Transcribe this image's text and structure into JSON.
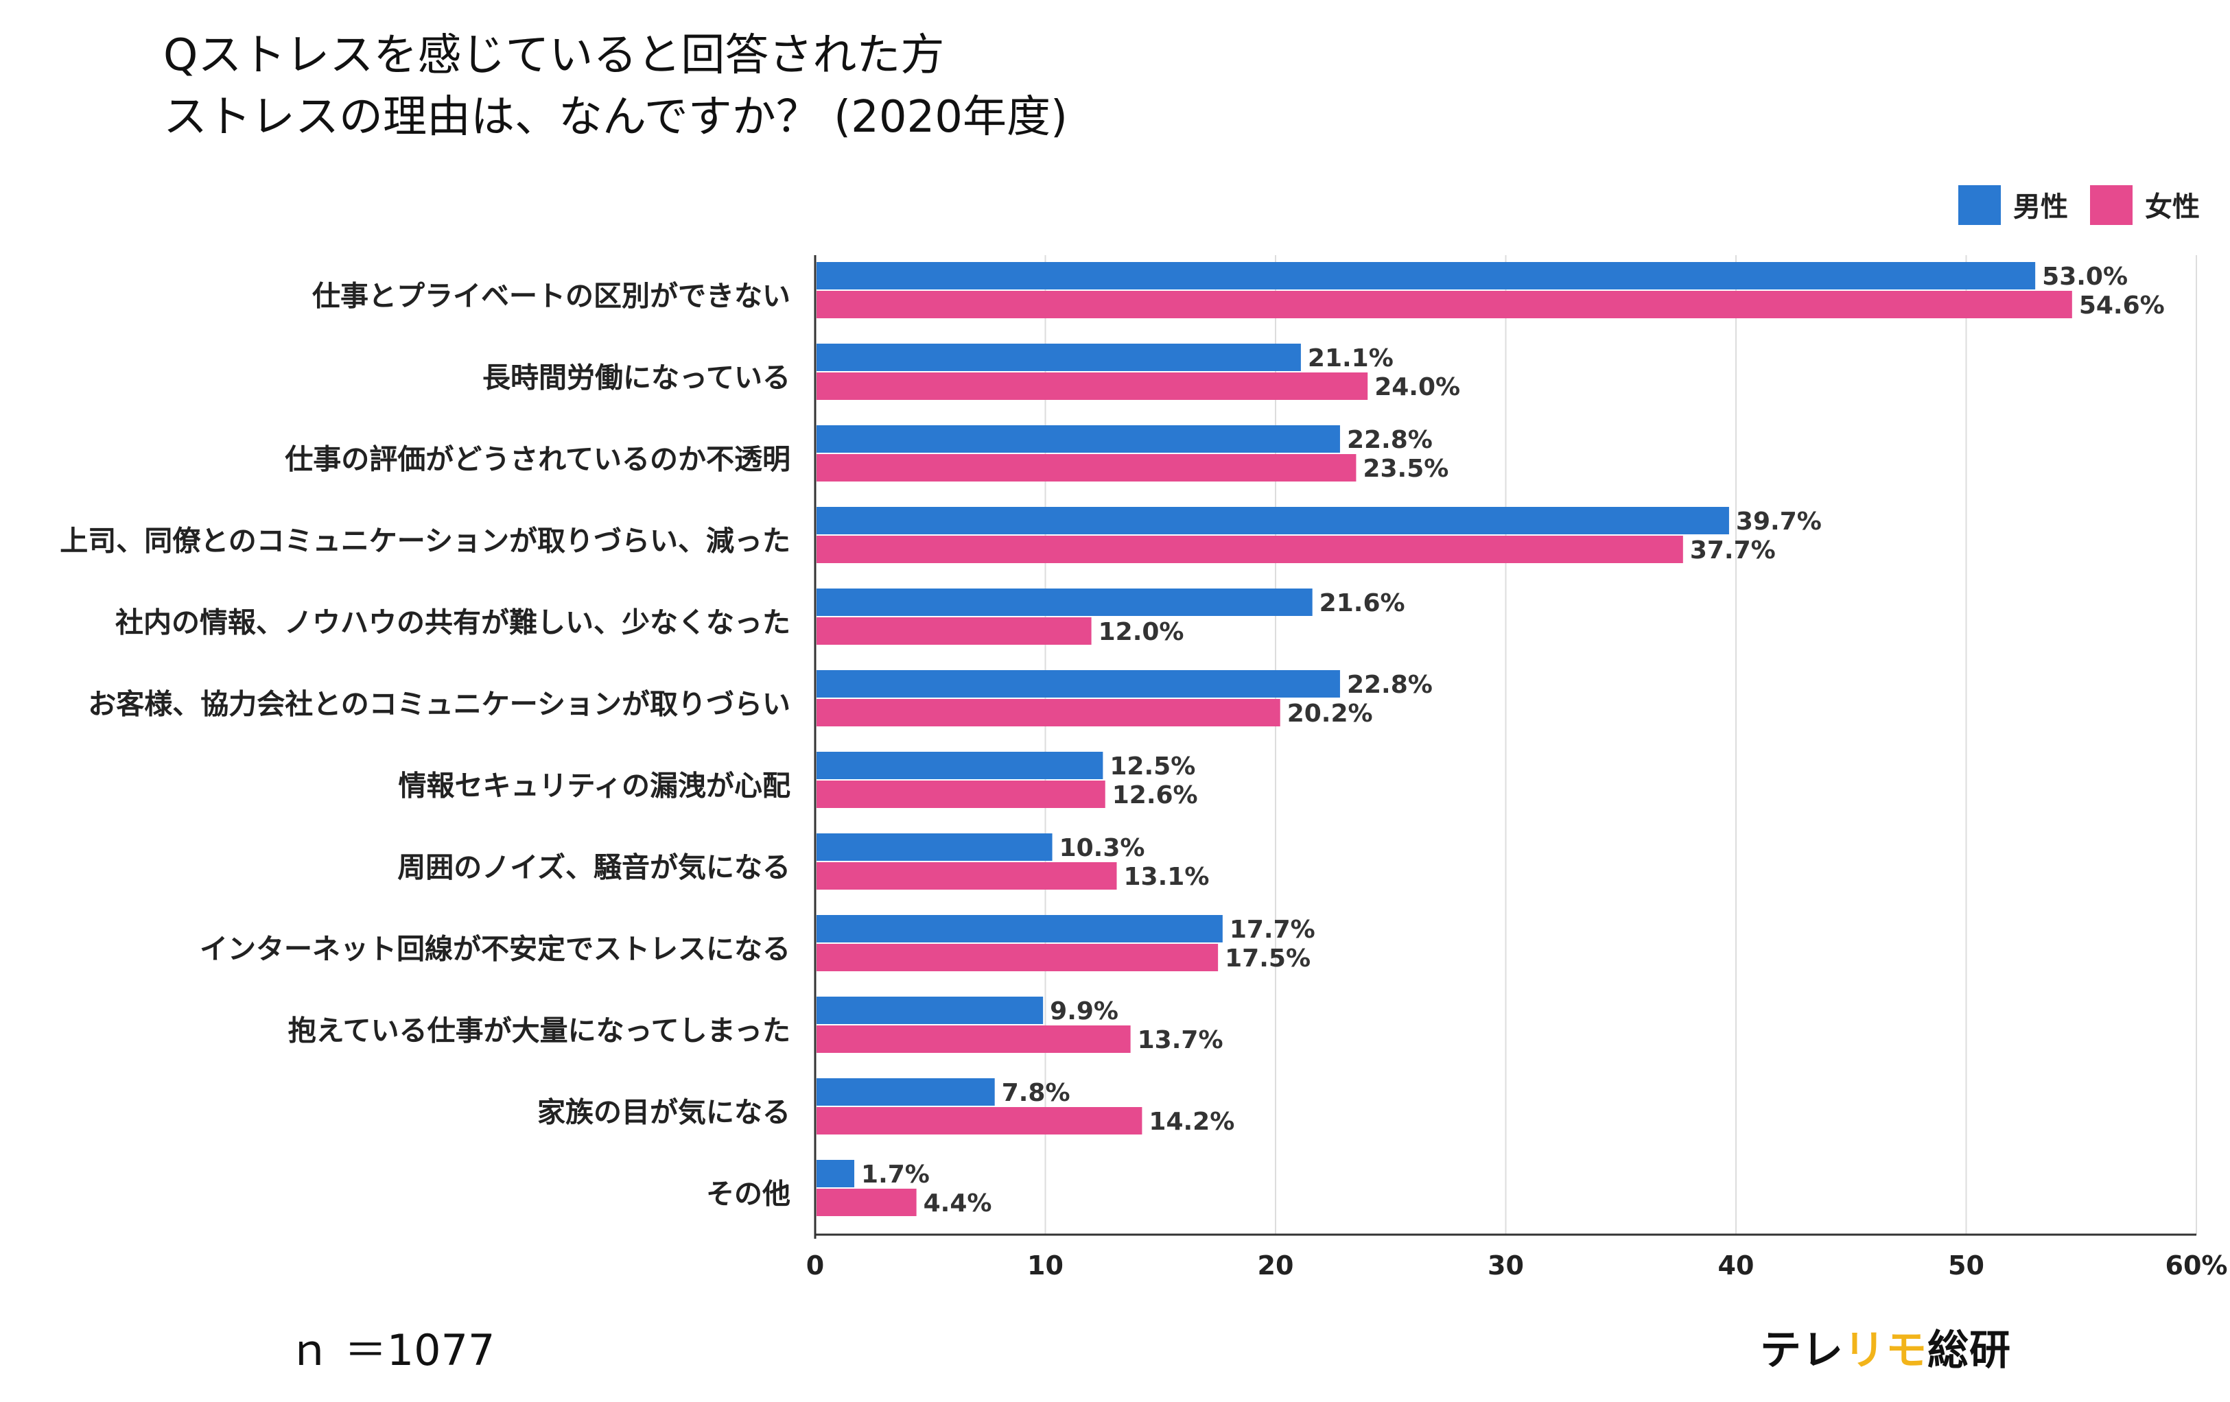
{
  "colors": {
    "male": "#2a79d1",
    "female": "#e64a8e",
    "grid": "#dddddd",
    "axis": "#333333",
    "logo_accent": "#f2b41a"
  },
  "chart_data": {
    "type": "bar",
    "orientation": "horizontal",
    "title_lines": [
      "Qストレスを感じていると回答された方",
      "ストレスの理由は、なんですか？ (2020年度)"
    ],
    "legend": [
      "男性",
      "女性"
    ],
    "legend_position": "top-right",
    "grid": true,
    "xlim": [
      0,
      60
    ],
    "x_ticks": [
      "0",
      "10",
      "20",
      "30",
      "40",
      "50",
      "60%"
    ],
    "categories": [
      "仕事とプライベートの区別ができない",
      "長時間労働になっている",
      "仕事の評価がどうされているのか不透明",
      "上司、同僚とのコミュニケーションが取りづらい、減った",
      "社内の情報、ノウハウの共有が難しい、少なくなった",
      "お客様、協力会社とのコミュニケーションが取りづらい",
      "情報セキュリティの漏洩が心配",
      "周囲のノイズ、騒音が気になる",
      "インターネット回線が不安定でストレスになる",
      "抱えている仕事が大量になってしまった",
      "家族の目が気になる",
      "その他"
    ],
    "series": [
      {
        "name": "男性",
        "values": [
          53.0,
          21.1,
          22.8,
          39.7,
          21.6,
          22.8,
          12.5,
          10.3,
          17.7,
          9.9,
          7.8,
          1.7
        ],
        "labels": [
          "53.0%",
          "21.1%",
          "22.8%",
          "39.7%",
          "21.6%",
          "22.8%",
          "12.5%",
          "10.3%",
          "17.7%",
          "9.9%",
          "7.8%",
          "1.7%"
        ]
      },
      {
        "name": "女性",
        "values": [
          54.6,
          24.0,
          23.5,
          37.7,
          12.0,
          20.2,
          12.6,
          13.1,
          17.5,
          13.7,
          14.2,
          4.4
        ],
        "labels": [
          "54.6%",
          "24.0%",
          "23.5%",
          "37.7%",
          "12.0%",
          "20.2%",
          "12.6%",
          "13.1%",
          "17.5%",
          "13.7%",
          "14.2%",
          "4.4%"
        ]
      }
    ]
  },
  "footer": {
    "sample_size": "ｎ ＝1077",
    "logo_main": "テレ",
    "logo_accent": "リモ",
    "logo_tail": "総研"
  }
}
